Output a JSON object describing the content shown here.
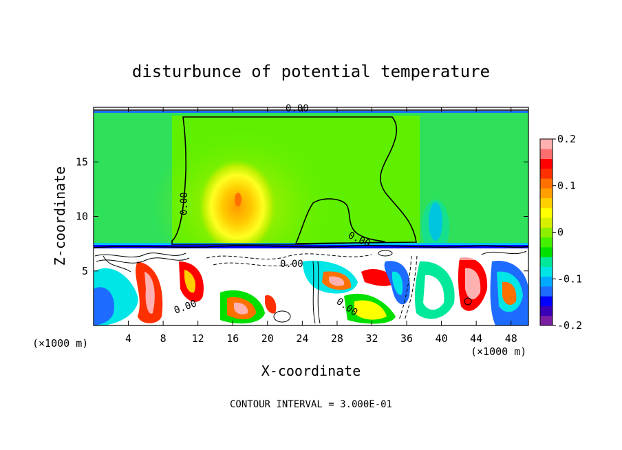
{
  "chart_data": {
    "type": "heatmap",
    "title": "disturbunce of potential temperature",
    "xlabel": "X-coordinate",
    "ylabel": "Z-coordinate",
    "x_unit": "(×1000 m)",
    "y_unit": "(×1000 m)",
    "footer": "CONTOUR INTERVAL = 3.000E-01",
    "xlim": [
      0,
      50
    ],
    "ylim": [
      0,
      20
    ],
    "x_ticks": [
      4,
      8,
      12,
      16,
      20,
      24,
      28,
      32,
      36,
      40,
      44,
      48
    ],
    "y_ticks": [
      5,
      10,
      15
    ],
    "colorbar": {
      "range": [
        -0.2,
        0.2
      ],
      "ticks": [
        "0.2",
        "0.1",
        "0",
        "-0.1",
        "-0.2"
      ],
      "colors": [
        "#7b1fa2",
        "#3a00b8",
        "#0000ff",
        "#1e6cff",
        "#00aaff",
        "#00e5e5",
        "#00e89a",
        "#00e000",
        "#44f000",
        "#8cf000",
        "#d6f000",
        "#ffff00",
        "#ffd000",
        "#ffa000",
        "#ff7000",
        "#ff3000",
        "#ff0000",
        "#ff6e6e",
        "#ffb0b0"
      ]
    },
    "contour_labels": [
      "0.00",
      "0.00",
      "0.00",
      "0.00",
      "0.00",
      "0.00"
    ],
    "features": [
      {
        "name": "upper-green-region",
        "z_range": [
          7,
          19.5
        ],
        "value_approx": 0.03
      },
      {
        "name": "warm-core",
        "center": [
          16.5,
          11.8
        ],
        "value_approx": 0.11
      },
      {
        "name": "turbulent-lower-layer",
        "z_range": [
          0,
          7
        ],
        "value_range": [
          -0.2,
          0.2
        ]
      }
    ]
  }
}
